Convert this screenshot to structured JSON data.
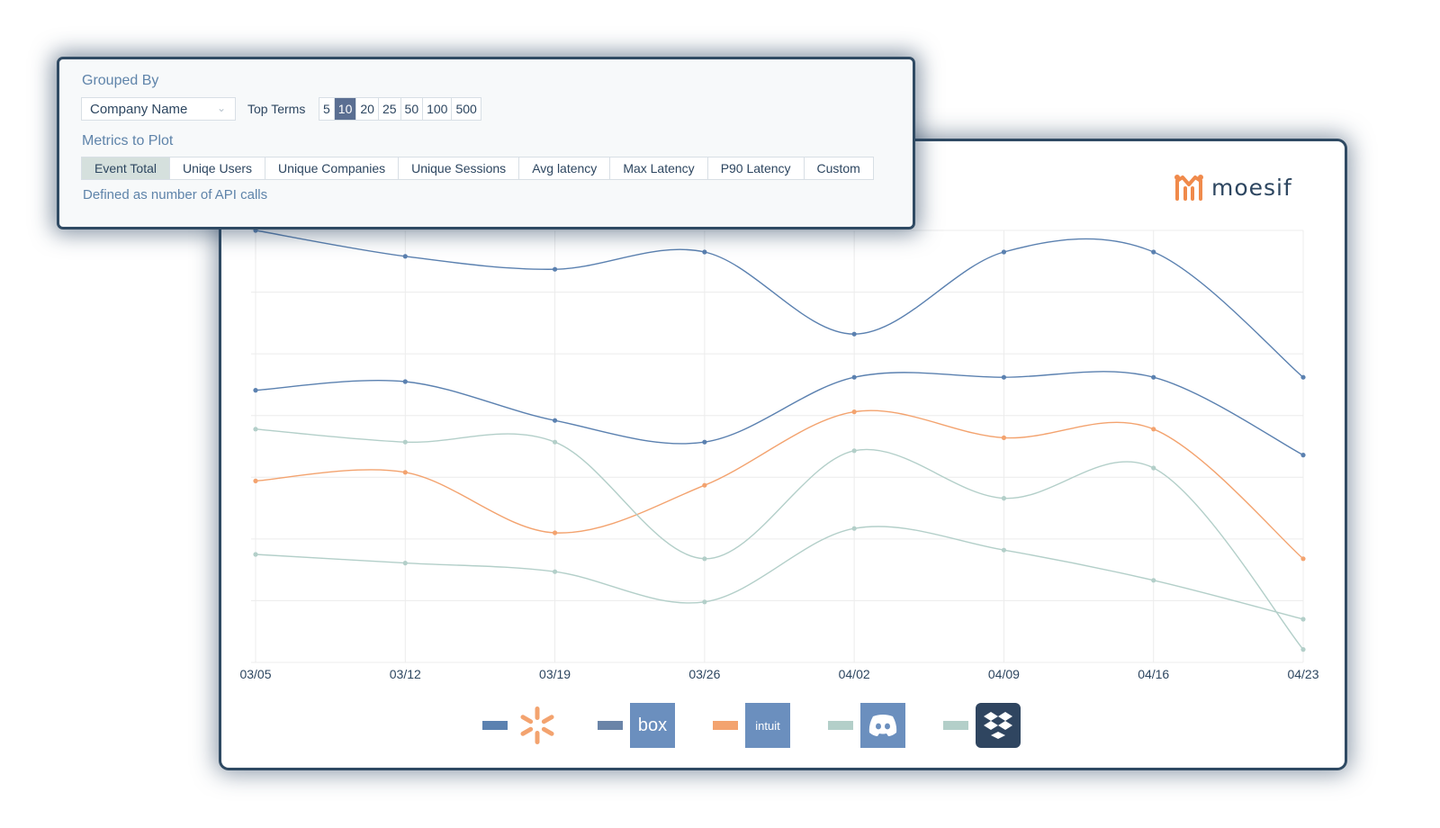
{
  "controls": {
    "grouped_by_label": "Grouped By",
    "group_select_value": "Company Name",
    "top_terms_label": "Top Terms",
    "top_terms": [
      "5",
      "10",
      "20",
      "25",
      "50",
      "100",
      "500"
    ],
    "top_terms_selected": "10",
    "metrics_label": "Metrics to Plot",
    "metrics": [
      "Event Total",
      "Uniqe Users",
      "Unique Companies",
      "Unique Sessions",
      "Avg latency",
      "Max Latency",
      "P90 Latency",
      "Custom"
    ],
    "metrics_selected": "Event Total",
    "metric_description": "Defined as number of API calls"
  },
  "brand": {
    "name": "moesif",
    "icon": "moesif-logo-icon",
    "color": "#f08a4b"
  },
  "chart_data": {
    "type": "line",
    "categories": [
      "03/05",
      "03/12",
      "03/19",
      "03/26",
      "04/02",
      "04/09",
      "04/16",
      "04/23"
    ],
    "ylim": [
      0,
      100
    ],
    "grid": true,
    "smooth": true,
    "series": [
      {
        "color": "#5b81b0",
        "values": [
          100,
          94,
          91,
          95,
          76,
          95,
          95,
          66
        ]
      },
      {
        "color": "#5b81b0",
        "values": [
          63,
          65,
          56,
          51,
          66,
          66,
          66,
          48
        ]
      },
      {
        "color": "#f3a36f",
        "values": [
          42,
          44,
          30,
          41,
          58,
          52,
          54,
          24
        ]
      },
      {
        "color": "#b3cfc9",
        "values": [
          54,
          51,
          51,
          24,
          49,
          38,
          45,
          3
        ]
      },
      {
        "color": "#b3cfc9",
        "values": [
          25,
          23,
          21,
          14,
          31,
          26,
          19,
          10
        ]
      }
    ]
  },
  "legend": [
    {
      "swatch_color": "#5b81b0",
      "icon": "walmart-spark-icon",
      "bg": "#ffffff",
      "mark_color": "#f3a36f"
    },
    {
      "swatch_color": "#6a84a8",
      "icon": "box-logo-icon",
      "bg": "#6b8fbe",
      "label": "box"
    },
    {
      "swatch_color": "#f3a36f",
      "icon": "intuit-logo-icon",
      "bg": "#6b8fbe",
      "label": "intuit"
    },
    {
      "swatch_color": "#b3cfc9",
      "icon": "discord-logo-icon",
      "bg": "#6b8fbe"
    },
    {
      "swatch_color": "#b3cfc9",
      "icon": "dropbox-logo-icon",
      "bg": "#2f4560"
    }
  ]
}
